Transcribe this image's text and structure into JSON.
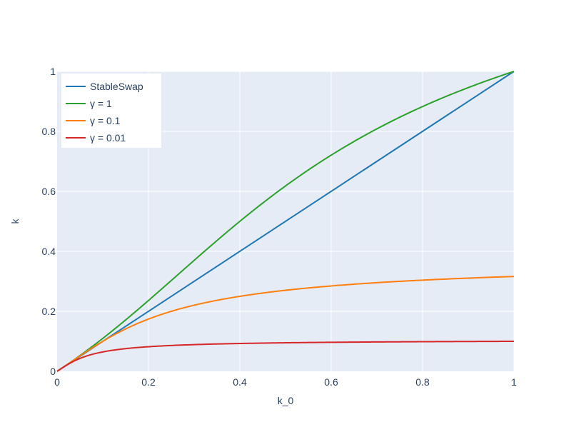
{
  "chart_data": {
    "type": "line",
    "title": "",
    "xlabel": "k_0",
    "ylabel": "k",
    "xlim": [
      0,
      1
    ],
    "ylim": [
      0,
      1
    ],
    "x_ticks": [
      0,
      0.2,
      0.4,
      0.6,
      0.8,
      1
    ],
    "x_tick_labels": [
      "0",
      "0.2",
      "0.4",
      "0.6",
      "0.8",
      "1"
    ],
    "y_ticks": [
      0,
      0.2,
      0.4,
      0.6,
      0.8,
      1
    ],
    "y_tick_labels": [
      "0",
      "0.2",
      "0.4",
      "0.6",
      "0.8",
      "1"
    ],
    "grid": true,
    "legend_position": "top-left",
    "plot_background": "#e5ecf6",
    "series": [
      {
        "name": "StableSwap",
        "color": "#1f77b4",
        "gamma": null
      },
      {
        "name": "γ = 1",
        "color": "#2ca02c",
        "gamma": 1
      },
      {
        "name": "γ = 0.1",
        "color": "#ff7f0e",
        "gamma": 0.1
      },
      {
        "name": "γ = 0.01",
        "color": "#d62728",
        "gamma": 0.01
      }
    ]
  }
}
